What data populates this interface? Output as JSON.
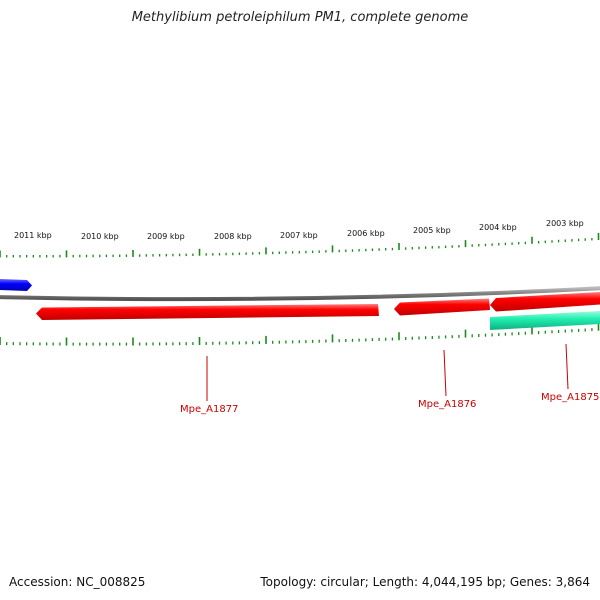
{
  "title": "Methylibium petroleiphilum PM1, complete genome",
  "scale_labels": [
    "2011 kbp",
    "2010 kbp",
    "2009 kbp",
    "2008 kbp",
    "2007 kbp",
    "2006 kbp",
    "2005 kbp",
    "2004 kbp",
    "2003 kbp"
  ],
  "gene_labels": [
    "Mpe_A1877",
    "Mpe_A1876",
    "Mpe_A1875"
  ],
  "colors": {
    "forward_strand": "#ff0000",
    "reverse_strand": "#0000ff",
    "highlight_feature": "#22f0b0",
    "ticks": "#1a8a1a",
    "backbone": "#888888",
    "label": "#cc0000"
  },
  "footer": {
    "accession": "Accession: NC_008825",
    "summary": "Topology: circular; Length: 4,044,195 bp; Genes: 3,864"
  }
}
